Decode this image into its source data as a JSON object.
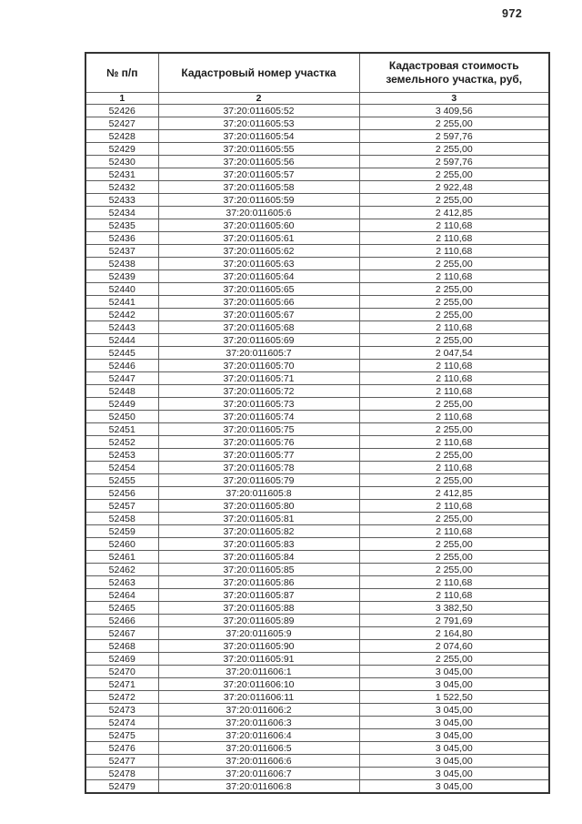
{
  "page": {
    "number": "972"
  },
  "table": {
    "headers": {
      "row_number": "№ п/п",
      "cadastral_number": "Кадастровый номер участка",
      "cost": "Кадастровая стоимость земельного участка, руб,"
    },
    "column_numbers": [
      "1",
      "2",
      "3"
    ],
    "rows": [
      [
        "52426",
        "37:20:011605:52",
        "3 409,56"
      ],
      [
        "52427",
        "37:20:011605:53",
        "2 255,00"
      ],
      [
        "52428",
        "37:20:011605:54",
        "2 597,76"
      ],
      [
        "52429",
        "37:20:011605:55",
        "2 255,00"
      ],
      [
        "52430",
        "37:20:011605:56",
        "2 597,76"
      ],
      [
        "52431",
        "37:20:011605:57",
        "2 255,00"
      ],
      [
        "52432",
        "37:20:011605:58",
        "2 922,48"
      ],
      [
        "52433",
        "37:20:011605:59",
        "2 255,00"
      ],
      [
        "52434",
        "37:20:011605:6",
        "2 412,85"
      ],
      [
        "52435",
        "37:20:011605:60",
        "2 110,68"
      ],
      [
        "52436",
        "37:20:011605:61",
        "2 110,68"
      ],
      [
        "52437",
        "37:20:011605:62",
        "2 110,68"
      ],
      [
        "52438",
        "37:20:011605:63",
        "2 255,00"
      ],
      [
        "52439",
        "37:20:011605:64",
        "2 110,68"
      ],
      [
        "52440",
        "37:20:011605:65",
        "2 255,00"
      ],
      [
        "52441",
        "37:20:011605:66",
        "2 255,00"
      ],
      [
        "52442",
        "37:20:011605:67",
        "2 255,00"
      ],
      [
        "52443",
        "37:20:011605:68",
        "2 110,68"
      ],
      [
        "52444",
        "37:20:011605:69",
        "2 255,00"
      ],
      [
        "52445",
        "37:20:011605:7",
        "2 047,54"
      ],
      [
        "52446",
        "37:20:011605:70",
        "2 110,68"
      ],
      [
        "52447",
        "37:20:011605:71",
        "2 110,68"
      ],
      [
        "52448",
        "37:20:011605:72",
        "2 110,68"
      ],
      [
        "52449",
        "37:20:011605:73",
        "2 255,00"
      ],
      [
        "52450",
        "37:20:011605:74",
        "2 110,68"
      ],
      [
        "52451",
        "37:20:011605:75",
        "2 255,00"
      ],
      [
        "52452",
        "37:20:011605:76",
        "2 110,68"
      ],
      [
        "52453",
        "37:20:011605:77",
        "2 255,00"
      ],
      [
        "52454",
        "37:20:011605:78",
        "2 110,68"
      ],
      [
        "52455",
        "37:20:011605:79",
        "2 255,00"
      ],
      [
        "52456",
        "37:20:011605:8",
        "2 412,85"
      ],
      [
        "52457",
        "37:20:011605:80",
        "2 110,68"
      ],
      [
        "52458",
        "37:20:011605:81",
        "2 255,00"
      ],
      [
        "52459",
        "37:20:011605:82",
        "2 110,68"
      ],
      [
        "52460",
        "37:20:011605:83",
        "2 255,00"
      ],
      [
        "52461",
        "37:20:011605:84",
        "2 255,00"
      ],
      [
        "52462",
        "37:20:011605:85",
        "2 255,00"
      ],
      [
        "52463",
        "37:20:011605:86",
        "2 110,68"
      ],
      [
        "52464",
        "37:20:011605:87",
        "2 110,68"
      ],
      [
        "52465",
        "37:20:011605:88",
        "3 382,50"
      ],
      [
        "52466",
        "37:20:011605:89",
        "2 791,69"
      ],
      [
        "52467",
        "37:20:011605:9",
        "2 164,80"
      ],
      [
        "52468",
        "37:20:011605:90",
        "2 074,60"
      ],
      [
        "52469",
        "37:20:011605:91",
        "2 255,00"
      ],
      [
        "52470",
        "37:20:011606:1",
        "3 045,00"
      ],
      [
        "52471",
        "37:20:011606:10",
        "3 045,00"
      ],
      [
        "52472",
        "37:20:011606:11",
        "1 522,50"
      ],
      [
        "52473",
        "37:20:011606:2",
        "3 045,00"
      ],
      [
        "52474",
        "37:20:011606:3",
        "3 045,00"
      ],
      [
        "52475",
        "37:20:011606:4",
        "3 045,00"
      ],
      [
        "52476",
        "37:20:011606:5",
        "3 045,00"
      ],
      [
        "52477",
        "37:20:011606:6",
        "3 045,00"
      ],
      [
        "52478",
        "37:20:011606:7",
        "3 045,00"
      ],
      [
        "52479",
        "37:20:011606:8",
        "3 045,00"
      ]
    ]
  }
}
